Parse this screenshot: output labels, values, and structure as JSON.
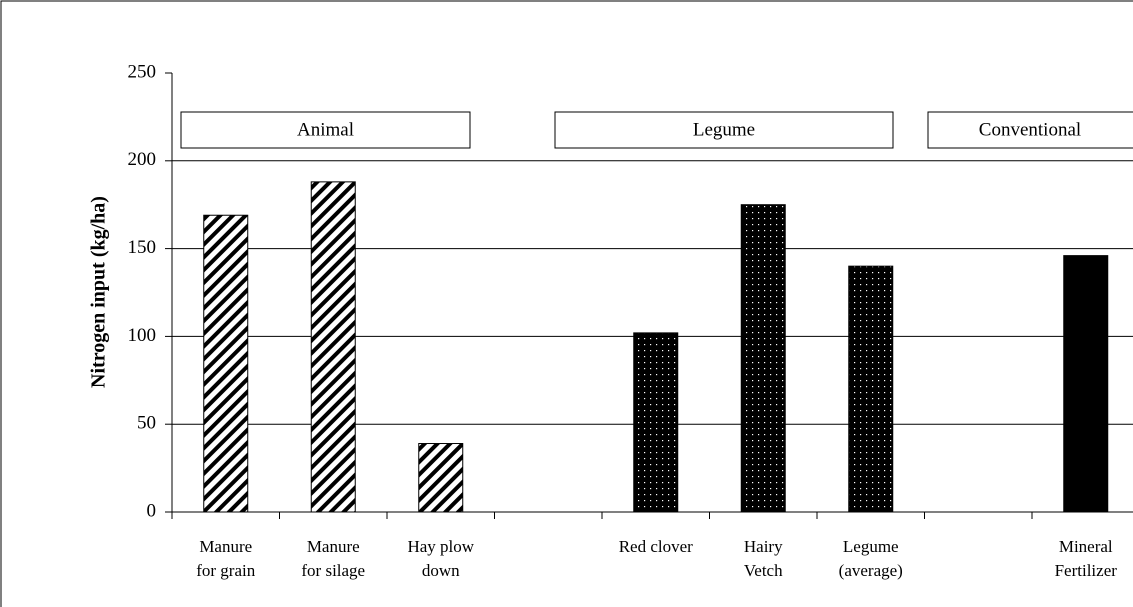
{
  "chart_data": {
    "type": "bar",
    "y_label": "Nitrogen input (kg/ha)",
    "categories": [
      "Manure\nfor grain",
      "Manure\nfor silage",
      "Hay plow\ndown",
      null,
      "Red clover",
      "Hairy\nVetch",
      "Legume\n(average)",
      null,
      "Mineral\nFertilizer"
    ],
    "values": [
      169,
      188,
      39,
      null,
      102,
      175,
      140,
      null,
      146
    ],
    "annotations": [
      "Animal",
      "Legume",
      "Conventional"
    ],
    "ylim": [
      0,
      250
    ],
    "yticks": [
      0,
      50,
      100,
      150,
      200,
      250
    ],
    "grid": true
  }
}
